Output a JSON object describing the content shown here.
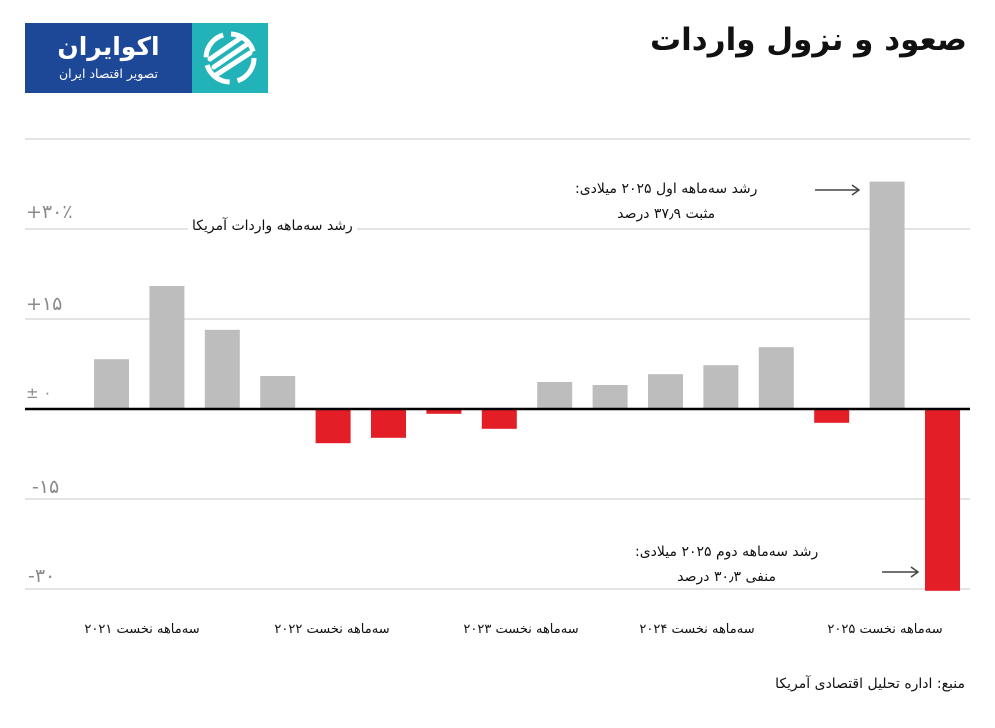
{
  "logo": {
    "name": "اکوایران",
    "tagline": "تصویر اقتصاد ایران",
    "colors": {
      "primary": "#1d4797",
      "accent": "#22b3b8"
    }
  },
  "chart_data": {
    "type": "bar",
    "title": "صعود و نزول واردات",
    "series_label": "رشد سه‌ماهه واردات آمریکا",
    "categories": [
      "2021 Q1",
      "2021 Q2",
      "2021 Q3",
      "2021 Q4",
      "2022 Q1",
      "2022 Q2",
      "2022 Q3",
      "2022 Q4",
      "2023 Q1",
      "2023 Q2",
      "2023 Q3",
      "2023 Q4",
      "2024 Q1",
      "2024 Q2",
      "2025 Q1",
      "2025 Q2"
    ],
    "values": [
      8.3,
      20.5,
      13.2,
      5.5,
      -5.7,
      -4.8,
      -0.8,
      -3.3,
      4.5,
      4.0,
      5.8,
      7.3,
      10.3,
      -2.3,
      37.9,
      -30.3
    ],
    "ylim": [
      -30.3,
      45
    ],
    "ytick_values": [
      30,
      15,
      0,
      -15,
      -30
    ],
    "ytick_labels": [
      "+۳۰٪",
      "+۱۵",
      "± ۰",
      "-۱۵",
      "-۳۰"
    ],
    "xtick_labels": [
      "سه‌ماهه نخست ۲۰۲۱",
      "سه‌ماهه نخست ۲۰۲۲",
      "سه‌ماهه نخست ۲۰۲۳",
      "سه‌ماهه نخست ۲۰۲۴",
      "سه‌ماهه نخست ۲۰۲۵"
    ],
    "annotations": [
      {
        "line1": "رشد سه‌ماهه اول ۲۰۲۵ میلادی:",
        "line2": "مثبت ۳۷٫۹ درصد"
      },
      {
        "line1": "رشد سه‌ماهه دوم ۲۰۲۵ میلادی:",
        "line2": "منفی ۳۰٫۳ درصد"
      }
    ],
    "colors": {
      "positive": "#bdbdbd",
      "negative": "#e31e26",
      "grid": "#e3e3e3",
      "zero_line": "#000000"
    },
    "grid": true,
    "source": "منبع: اداره تحلیل اقتصادی آمریکا"
  }
}
